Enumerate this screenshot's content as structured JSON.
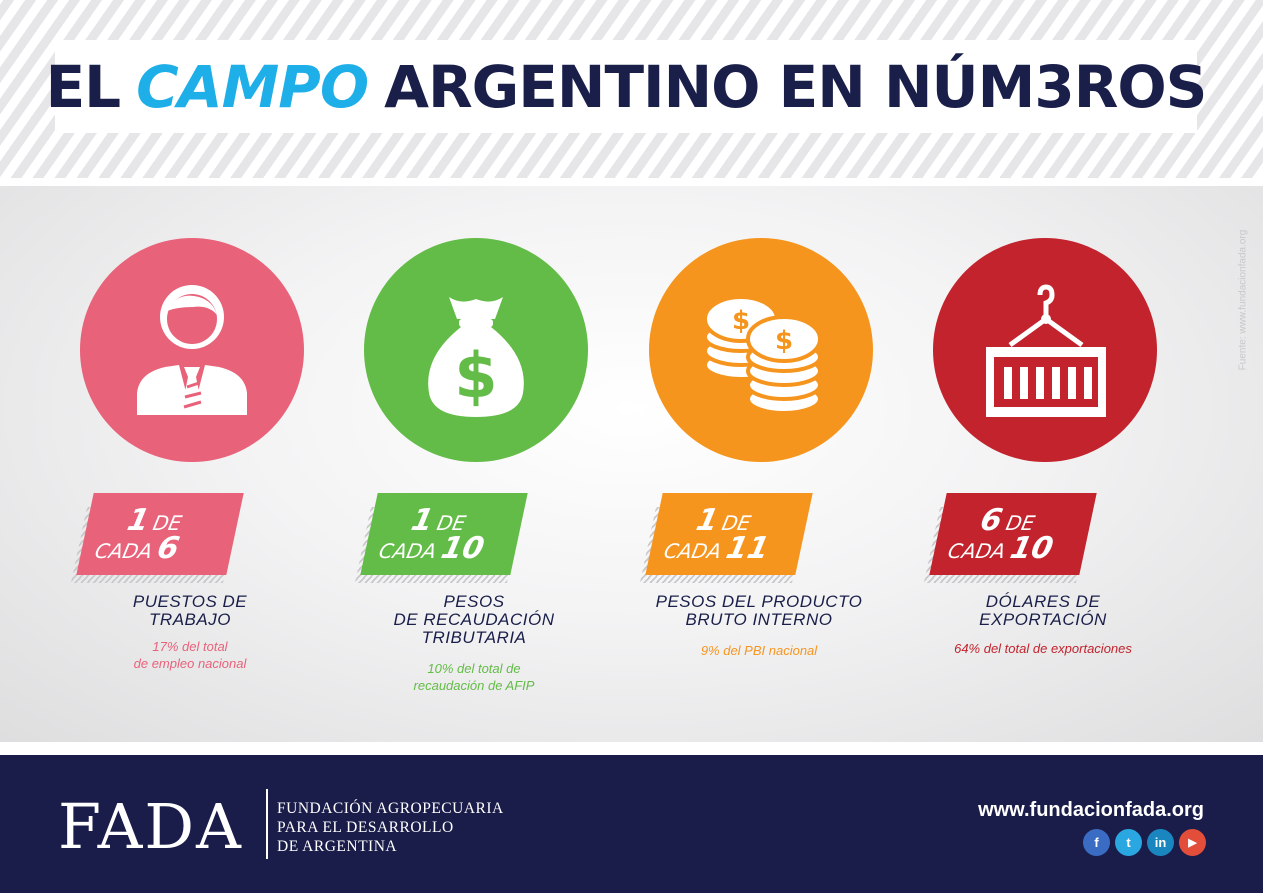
{
  "header": {
    "title_part1": "EL",
    "title_accent": "CAMPO",
    "title_part2": "ARGENTINO EN NÚM3ROS"
  },
  "source_note": "Fuente: www.fundacionfada.org",
  "stats": [
    {
      "icon": "businessman-icon",
      "color": "#e8627a",
      "num1": "1",
      "de": "DE",
      "cada": "CADA",
      "num2": "6",
      "label_lines": [
        "PUESTOS DE",
        "TRABAJO"
      ],
      "note_lines": [
        "17% del total",
        "de empleo nacional"
      ]
    },
    {
      "icon": "money-bag-icon",
      "color": "#63bc47",
      "num1": "1",
      "de": "DE",
      "cada": "CADA",
      "num2": "10",
      "label_lines": [
        "PESOS",
        "DE RECAUDACIÓN",
        "TRIBUTARIA"
      ],
      "note_lines": [
        "10% del total de",
        "recaudación de AFIP"
      ]
    },
    {
      "icon": "coin-stacks-icon",
      "color": "#f6951e",
      "num1": "1",
      "de": "DE",
      "cada": "CADA",
      "num2": "11",
      "label_lines": [
        "PESOS DEL PRODUCTO",
        "BRUTO INTERNO"
      ],
      "note_lines": [
        "9% del PBI nacional"
      ]
    },
    {
      "icon": "shipping-container-icon",
      "color": "#c2232d",
      "num1": "6",
      "de": "DE",
      "cada": "CADA",
      "num2": "10",
      "label_lines": [
        "DÓLARES DE",
        "EXPORTACIÓN"
      ],
      "note_lines": [
        "64% del total de exportaciones"
      ]
    }
  ],
  "footer": {
    "logo": "FADA",
    "name_lines": [
      "FUNDACIÓN AGROPECUARIA",
      "PARA EL DESARROLLO",
      "DE ARGENTINA"
    ],
    "website": "www.fundacionfada.org",
    "socials": [
      {
        "icon": "facebook-icon",
        "glyph": "f",
        "color": "#3b6cc4"
      },
      {
        "icon": "twitter-icon",
        "glyph": "t",
        "color": "#2aa7e0"
      },
      {
        "icon": "linkedin-icon",
        "glyph": "in",
        "color": "#1a86c0"
      },
      {
        "icon": "youtube-icon",
        "glyph": "▶",
        "color": "#e34e3a"
      }
    ]
  }
}
